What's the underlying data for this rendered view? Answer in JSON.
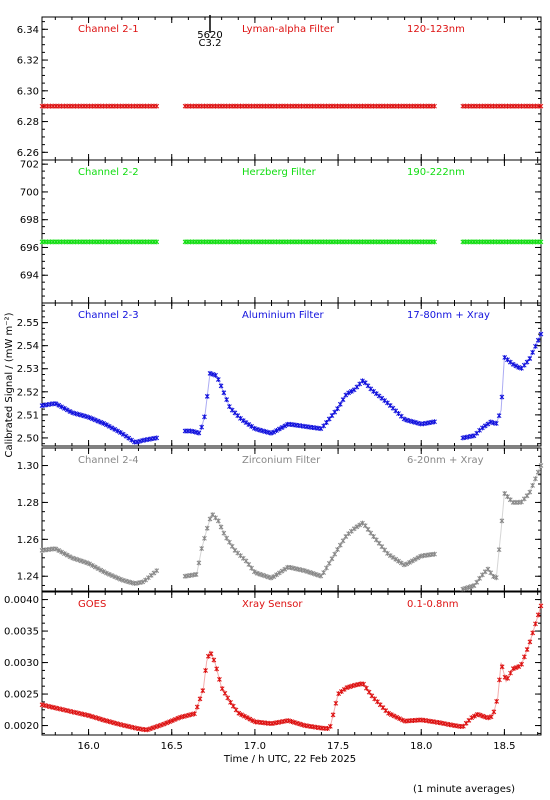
{
  "chart_data": {
    "type": "scatter",
    "xlabel": "Time / h UTC, 22 Feb 2025",
    "ylabel": "Calibrated Signal / (mW m⁻²)",
    "footnote": "(1 minute averages)",
    "xlim": [
      15.72,
      18.72
    ],
    "x_ticks": [
      16.0,
      16.5,
      17.0,
      17.5,
      18.0,
      18.5
    ],
    "x_tick_labels": [
      "16.0",
      "16.5",
      "17.0",
      "17.5",
      "18.0",
      "18.5"
    ],
    "event_marker": {
      "x": 16.73,
      "label_top": "5620",
      "label_bottom": "C3.2"
    },
    "panels": [
      {
        "channel": "Channel 2-1",
        "filter": "Lyman-alpha Filter",
        "band": "120-123nm",
        "color": "#dd1111",
        "ylim": [
          6.255,
          6.348
        ],
        "y_ticks": [
          6.26,
          6.28,
          6.3,
          6.32,
          6.34
        ],
        "y_tick_labels": [
          "6.26",
          "6.28",
          "6.30",
          "6.32",
          "6.34"
        ],
        "segments": [
          {
            "x": [
              15.72,
              16.41
            ],
            "y": [
              6.29,
              6.29
            ]
          },
          {
            "x": [
              16.58,
              18.08
            ],
            "y": [
              6.29,
              6.29
            ]
          },
          {
            "x": [
              18.25,
              18.72
            ],
            "y": [
              6.29,
              6.29
            ]
          }
        ]
      },
      {
        "channel": "Channel 2-2",
        "filter": "Herzberg Filter",
        "band": "190-222nm",
        "color": "#11dd11",
        "ylim": [
          692.0,
          702.3
        ],
        "y_ticks": [
          694,
          696,
          698,
          700,
          702
        ],
        "y_tick_labels": [
          "694",
          "696",
          "698",
          "700",
          "702"
        ],
        "segments": [
          {
            "x": [
              15.72,
              16.41
            ],
            "y": [
              696.4,
              696.4
            ]
          },
          {
            "x": [
              16.58,
              18.08
            ],
            "y": [
              696.4,
              696.4
            ]
          },
          {
            "x": [
              18.25,
              18.72
            ],
            "y": [
              696.4,
              696.4
            ]
          }
        ]
      },
      {
        "channel": "Channel 2-3",
        "filter": "Aluminium Filter",
        "band": "17-80nm + Xray",
        "color": "#1111dd",
        "ylim": [
          2.4965,
          2.5585
        ],
        "y_ticks": [
          2.5,
          2.51,
          2.52,
          2.53,
          2.54,
          2.55
        ],
        "y_tick_labels": [
          "2.50",
          "2.51",
          "2.52",
          "2.53",
          "2.54",
          "2.55"
        ],
        "segments": [
          {
            "x": [
              15.72,
              15.8,
              15.9,
              16.0,
              16.1,
              16.2,
              16.28,
              16.33,
              16.41
            ],
            "y": [
              2.514,
              2.515,
              2.511,
              2.509,
              2.506,
              2.502,
              2.498,
              2.499,
              2.5
            ]
          },
          {
            "x": [
              16.58,
              16.62,
              16.67,
              16.7,
              16.73,
              16.77,
              16.8,
              16.85,
              16.92,
              17.0,
              17.1,
              17.2,
              17.3,
              17.4,
              17.5,
              17.55,
              17.6,
              17.65,
              17.7,
              17.8,
              17.9,
              18.0,
              18.08
            ],
            "y": [
              2.503,
              2.503,
              2.502,
              2.51,
              2.528,
              2.527,
              2.522,
              2.513,
              2.508,
              2.504,
              2.502,
              2.506,
              2.505,
              2.504,
              2.513,
              2.519,
              2.521,
              2.525,
              2.521,
              2.515,
              2.508,
              2.506,
              2.507
            ]
          },
          {
            "x": [
              18.25,
              18.32,
              18.36,
              18.42,
              18.45,
              18.48,
              18.5,
              18.55,
              18.6,
              18.65,
              18.72
            ],
            "y": [
              2.5,
              2.501,
              2.504,
              2.507,
              2.506,
              2.512,
              2.535,
              2.532,
              2.53,
              2.534,
              2.545
            ]
          }
        ]
      },
      {
        "channel": "Channel 2-4",
        "filter": "Zirconium Filter",
        "band": "6-20nm + Xray",
        "color": "#888888",
        "ylim": [
          1.232,
          1.3095
        ],
        "y_ticks": [
          1.24,
          1.26,
          1.28,
          1.3
        ],
        "y_tick_labels": [
          "1.24",
          "1.26",
          "1.28",
          "1.30"
        ],
        "segments": [
          {
            "x": [
              15.72,
              15.8,
              15.9,
              16.0,
              16.1,
              16.2,
              16.28,
              16.33,
              16.41
            ],
            "y": [
              1.254,
              1.255,
              1.25,
              1.247,
              1.242,
              1.238,
              1.236,
              1.237,
              1.243
            ]
          },
          {
            "x": [
              16.58,
              16.65,
              16.68,
              16.71,
              16.74,
              16.78,
              16.82,
              16.88,
              16.95,
              17.0,
              17.1,
              17.2,
              17.3,
              17.4,
              17.5,
              17.55,
              17.6,
              17.65,
              17.7,
              17.8,
              17.9,
              18.0,
              18.08
            ],
            "y": [
              1.24,
              1.241,
              1.255,
              1.265,
              1.274,
              1.27,
              1.262,
              1.254,
              1.248,
              1.242,
              1.239,
              1.245,
              1.243,
              1.24,
              1.255,
              1.262,
              1.266,
              1.269,
              1.263,
              1.252,
              1.246,
              1.251,
              1.252
            ]
          },
          {
            "x": [
              18.25,
              18.32,
              18.36,
              18.4,
              18.45,
              18.48,
              18.5,
              18.55,
              18.6,
              18.65,
              18.72
            ],
            "y": [
              1.233,
              1.235,
              1.24,
              1.244,
              1.238,
              1.265,
              1.285,
              1.28,
              1.28,
              1.285,
              1.3
            ]
          }
        ]
      },
      {
        "channel": "GOES",
        "filter": "Xray Sensor",
        "band": "0.1-0.8nm",
        "color": "#dd1111",
        "ylim": [
          0.00185,
          0.00412
        ],
        "y_ticks": [
          0.002,
          0.0025,
          0.003,
          0.0035,
          0.004
        ],
        "y_tick_labels": [
          "0.0020",
          "0.0025",
          "0.0030",
          "0.0035",
          "0.0040"
        ],
        "segments": [
          {
            "x": [
              15.72,
              15.8,
              15.9,
              16.0,
              16.1,
              16.2,
              16.3,
              16.35,
              16.45,
              16.55,
              16.64,
              16.69,
              16.71,
              16.73,
              16.76,
              16.8,
              16.85,
              16.9,
              17.0,
              17.1,
              17.2,
              17.3,
              17.4,
              17.45,
              17.5,
              17.55,
              17.6,
              17.65,
              17.7,
              17.8,
              17.9,
              18.0,
              18.1,
              18.2,
              18.25,
              18.3,
              18.34,
              18.4,
              18.43,
              18.46,
              18.48,
              18.51,
              18.55,
              18.6,
              18.65,
              18.72
            ],
            "y": [
              0.00233,
              0.00228,
              0.00222,
              0.00216,
              0.00208,
              0.00201,
              0.00195,
              0.00193,
              0.00202,
              0.00213,
              0.00219,
              0.00258,
              0.00302,
              0.00318,
              0.003,
              0.0026,
              0.00238,
              0.0022,
              0.00206,
              0.00203,
              0.00208,
              0.002,
              0.00196,
              0.00195,
              0.0025,
              0.0026,
              0.00264,
              0.00267,
              0.00248,
              0.0022,
              0.00207,
              0.00209,
              0.00205,
              0.002,
              0.00198,
              0.00212,
              0.00218,
              0.00212,
              0.00215,
              0.00245,
              0.003,
              0.0027,
              0.0029,
              0.00295,
              0.0033,
              0.0039
            ]
          }
        ]
      }
    ]
  }
}
